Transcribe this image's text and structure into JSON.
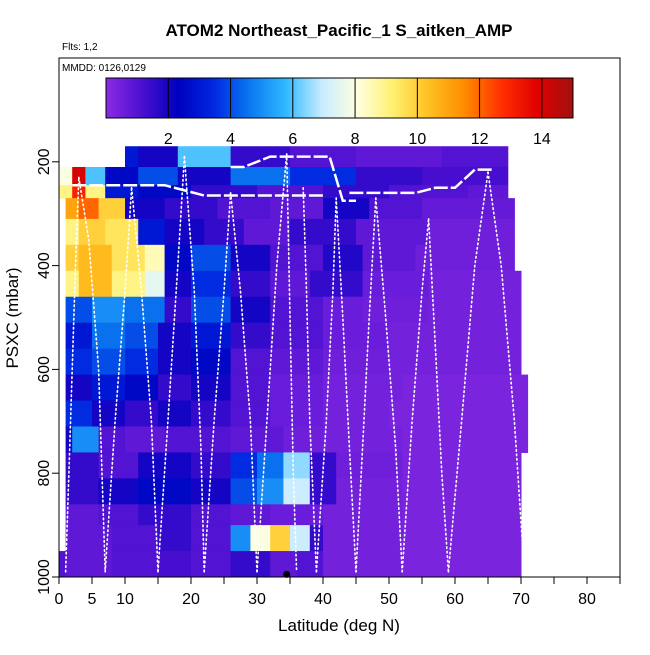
{
  "header": {
    "title": "ATOM2 Northeast_Pacific_1 S_aitken_AMP",
    "flights": "Flts: 1,2",
    "dates": "MMDD: 0126,0129"
  },
  "chart_data": {
    "type": "heatmap",
    "title": "ATOM2 Northeast_Pacific_1 S_aitken_AMP",
    "xlabel": "Latitude (deg N)",
    "ylabel": "PSXC (mbar)",
    "xlim": [
      0,
      85
    ],
    "ylim": [
      1000,
      0
    ],
    "x_ticks": [
      0,
      5,
      10,
      20,
      30,
      40,
      50,
      60,
      70,
      80
    ],
    "x_minor_ticks": [
      15,
      25,
      35,
      45,
      55,
      65,
      75,
      85
    ],
    "y_ticks": [
      200,
      400,
      600,
      800,
      1000
    ],
    "colorbar": {
      "min": 0,
      "max": 15,
      "ticks": [
        2,
        4,
        6,
        8,
        10,
        12,
        14
      ],
      "colors": [
        "#8a2be2",
        "#4b0fd0",
        "#0000c0",
        "#0028e0",
        "#0a78f0",
        "#30b8ff",
        "#c8ecff",
        "#ffffe0",
        "#fff070",
        "#ffc020",
        "#ff8a00",
        "#ff3000",
        "#e00000",
        "#a01010"
      ]
    },
    "grid": false,
    "bands": [
      {
        "p": [
          170,
          210
        ],
        "cells": [
          [
            10,
            12,
            3
          ],
          [
            12,
            18,
            2
          ],
          [
            18,
            26,
            6
          ],
          [
            26,
            35,
            1.5
          ],
          [
            35,
            45,
            1
          ],
          [
            45,
            58,
            0.8
          ],
          [
            58,
            68,
            1
          ]
        ]
      },
      {
        "p": [
          210,
          245
        ],
        "cells": [
          [
            0,
            2,
            8
          ],
          [
            2,
            4,
            14
          ],
          [
            4,
            7,
            6
          ],
          [
            7,
            12,
            2.5
          ],
          [
            12,
            18,
            4
          ],
          [
            18,
            26,
            2
          ],
          [
            26,
            35,
            4.5
          ],
          [
            35,
            45,
            3.5
          ],
          [
            45,
            55,
            1.5
          ],
          [
            55,
            68,
            1.2
          ]
        ]
      },
      {
        "p": [
          245,
          270
        ],
        "cells": [
          [
            0,
            2,
            9
          ],
          [
            2,
            4,
            13
          ],
          [
            4,
            7,
            9
          ],
          [
            7,
            12,
            3
          ],
          [
            12,
            20,
            2.5
          ],
          [
            20,
            30,
            1.5
          ],
          [
            30,
            40,
            1
          ],
          [
            40,
            50,
            1.5
          ],
          [
            50,
            62,
            1
          ],
          [
            62,
            68,
            0.8
          ]
        ]
      },
      {
        "p": [
          270,
          310
        ],
        "cells": [
          [
            1,
            3,
            11
          ],
          [
            3,
            6,
            12
          ],
          [
            6,
            10,
            10
          ],
          [
            10,
            16,
            2
          ],
          [
            16,
            24,
            1.5
          ],
          [
            24,
            32,
            1
          ],
          [
            32,
            40,
            0.8
          ],
          [
            40,
            47,
            2
          ],
          [
            47,
            55,
            1
          ],
          [
            55,
            69,
            0.7
          ]
        ]
      },
      {
        "p": [
          310,
          360
        ],
        "cells": [
          [
            1,
            3,
            9
          ],
          [
            3,
            7,
            10
          ],
          [
            7,
            12,
            9.5
          ],
          [
            12,
            16,
            3
          ],
          [
            16,
            22,
            2
          ],
          [
            22,
            28,
            1.5
          ],
          [
            28,
            35,
            0.8
          ],
          [
            35,
            45,
            1.5
          ],
          [
            45,
            56,
            0.8
          ],
          [
            56,
            69,
            0.5
          ]
        ]
      },
      {
        "p": [
          360,
          410
        ],
        "cells": [
          [
            1,
            3,
            10
          ],
          [
            3,
            8,
            10.5
          ],
          [
            8,
            13,
            9.5
          ],
          [
            13,
            16,
            8.5
          ],
          [
            16,
            20,
            2.5
          ],
          [
            20,
            26,
            4
          ],
          [
            26,
            32,
            2
          ],
          [
            32,
            40,
            1
          ],
          [
            40,
            46,
            1.8
          ],
          [
            46,
            54,
            0.8
          ],
          [
            54,
            69,
            0.5
          ]
        ]
      },
      {
        "p": [
          410,
          460
        ],
        "cells": [
          [
            1,
            3,
            9
          ],
          [
            3,
            8,
            10.5
          ],
          [
            8,
            13,
            9
          ],
          [
            13,
            16,
            7.5
          ],
          [
            16,
            20,
            2
          ],
          [
            20,
            26,
            3.5
          ],
          [
            26,
            32,
            1.5
          ],
          [
            32,
            38,
            0.8
          ],
          [
            38,
            46,
            1.5
          ],
          [
            46,
            56,
            0.6
          ],
          [
            56,
            70,
            0.4
          ]
        ]
      },
      {
        "p": [
          460,
          510
        ],
        "cells": [
          [
            1,
            5,
            4
          ],
          [
            5,
            10,
            5
          ],
          [
            10,
            16,
            4.5
          ],
          [
            16,
            20,
            1.5
          ],
          [
            20,
            26,
            4
          ],
          [
            26,
            32,
            2
          ],
          [
            32,
            40,
            1
          ],
          [
            40,
            46,
            0.6
          ],
          [
            46,
            56,
            0.5
          ],
          [
            56,
            70,
            0.4
          ]
        ]
      },
      {
        "p": [
          510,
          560
        ],
        "cells": [
          [
            1,
            5,
            3
          ],
          [
            5,
            10,
            4.5
          ],
          [
            10,
            15,
            4
          ],
          [
            15,
            20,
            2
          ],
          [
            20,
            26,
            3
          ],
          [
            26,
            32,
            1.5
          ],
          [
            32,
            40,
            1
          ],
          [
            40,
            50,
            0.6
          ],
          [
            50,
            70,
            0.4
          ]
        ]
      },
      {
        "p": [
          560,
          610
        ],
        "cells": [
          [
            1,
            5,
            3.5
          ],
          [
            5,
            10,
            4
          ],
          [
            10,
            15,
            3.5
          ],
          [
            15,
            20,
            2
          ],
          [
            20,
            26,
            2.5
          ],
          [
            26,
            32,
            1
          ],
          [
            32,
            40,
            0.8
          ],
          [
            40,
            50,
            0.5
          ],
          [
            50,
            70,
            0.4
          ]
        ]
      },
      {
        "p": [
          610,
          660
        ],
        "cells": [
          [
            1,
            5,
            2
          ],
          [
            5,
            10,
            3
          ],
          [
            10,
            15,
            2.5
          ],
          [
            15,
            20,
            1.5
          ],
          [
            20,
            26,
            2
          ],
          [
            26,
            32,
            1
          ],
          [
            32,
            40,
            0.6
          ],
          [
            40,
            52,
            0.4
          ],
          [
            52,
            71,
            0.3
          ]
        ]
      },
      {
        "p": [
          660,
          710
        ],
        "cells": [
          [
            1,
            5,
            3.5
          ],
          [
            5,
            10,
            2
          ],
          [
            10,
            15,
            1.5
          ],
          [
            15,
            20,
            2
          ],
          [
            20,
            26,
            1.5
          ],
          [
            26,
            32,
            1
          ],
          [
            32,
            40,
            0.6
          ],
          [
            40,
            50,
            0.4
          ],
          [
            50,
            71,
            0.3
          ]
        ]
      },
      {
        "p": [
          710,
          760
        ],
        "cells": [
          [
            1,
            2,
            2
          ],
          [
            2,
            6,
            5
          ],
          [
            6,
            10,
            1
          ],
          [
            10,
            16,
            0.8
          ],
          [
            16,
            26,
            1
          ],
          [
            26,
            34,
            0.8
          ],
          [
            34,
            40,
            0.5
          ],
          [
            40,
            52,
            0.4
          ],
          [
            52,
            71,
            0.3
          ]
        ]
      },
      {
        "p": [
          760,
          810
        ],
        "cells": [
          [
            1,
            6,
            1.5
          ],
          [
            6,
            12,
            1
          ],
          [
            12,
            20,
            2
          ],
          [
            20,
            26,
            1.5
          ],
          [
            26,
            30,
            3.5
          ],
          [
            30,
            34,
            4.5
          ],
          [
            34,
            38,
            6.5
          ],
          [
            38,
            42,
            1.5
          ],
          [
            42,
            52,
            0.5
          ],
          [
            52,
            70,
            0.3
          ]
        ]
      },
      {
        "p": [
          810,
          860
        ],
        "cells": [
          [
            1,
            6,
            1.5
          ],
          [
            6,
            12,
            2
          ],
          [
            12,
            20,
            2.5
          ],
          [
            20,
            26,
            2
          ],
          [
            26,
            30,
            4
          ],
          [
            30,
            34,
            5
          ],
          [
            34,
            38,
            7
          ],
          [
            38,
            42,
            1.5
          ],
          [
            42,
            52,
            0.4
          ],
          [
            52,
            70,
            0.3
          ]
        ]
      },
      {
        "p": [
          860,
          900
        ],
        "cells": [
          [
            1,
            6,
            0.8
          ],
          [
            6,
            12,
            1
          ],
          [
            12,
            20,
            1.5
          ],
          [
            20,
            26,
            1
          ],
          [
            26,
            32,
            0.8
          ],
          [
            32,
            40,
            0.6
          ],
          [
            40,
            52,
            0.4
          ],
          [
            52,
            70,
            0.3
          ]
        ]
      },
      {
        "p": [
          900,
          950
        ],
        "cells": [
          [
            1,
            8,
            0.8
          ],
          [
            8,
            15,
            1
          ],
          [
            15,
            20,
            1.5
          ],
          [
            20,
            26,
            1
          ],
          [
            26,
            29,
            5
          ],
          [
            29,
            32,
            8
          ],
          [
            32,
            35,
            10
          ],
          [
            35,
            38,
            7
          ],
          [
            38,
            40,
            1.5
          ],
          [
            40,
            52,
            0.4
          ],
          [
            52,
            70,
            0.3
          ]
        ]
      },
      {
        "p": [
          950,
          1000
        ],
        "cells": [
          [
            0,
            1,
            1
          ],
          [
            1,
            8,
            0.8
          ],
          [
            8,
            15,
            1
          ],
          [
            15,
            20,
            1.2
          ],
          [
            20,
            26,
            1
          ],
          [
            26,
            32,
            1.5
          ],
          [
            32,
            36,
            0.8
          ],
          [
            36,
            40,
            1
          ],
          [
            40,
            52,
            0.4
          ],
          [
            52,
            70,
            0.3
          ]
        ]
      }
    ],
    "profiles": [
      {
        "lat": [
          1,
          1.5,
          2,
          2.5,
          3
        ],
        "p": [
          990,
          800,
          600,
          400,
          230
        ]
      },
      {
        "lat": [
          3,
          4.5,
          6,
          7
        ],
        "p": [
          230,
          350,
          600,
          990
        ]
      },
      {
        "lat": [
          7,
          8.5,
          10,
          11
        ],
        "p": [
          990,
          700,
          450,
          250
        ]
      },
      {
        "lat": [
          11,
          12.5,
          14,
          15
        ],
        "p": [
          250,
          450,
          700,
          990
        ]
      },
      {
        "lat": [
          15,
          16.5,
          18,
          19
        ],
        "p": [
          990,
          700,
          400,
          190
        ]
      },
      {
        "lat": [
          19,
          20.5,
          21.5,
          22
        ],
        "p": [
          190,
          450,
          750,
          990
        ]
      },
      {
        "lat": [
          22,
          23.5,
          25,
          26
        ],
        "p": [
          990,
          700,
          450,
          260
        ]
      },
      {
        "lat": [
          26,
          27.5,
          29,
          30
        ],
        "p": [
          260,
          450,
          700,
          990
        ]
      },
      {
        "lat": [
          30,
          31.5,
          33,
          34.5
        ],
        "p": [
          990,
          700,
          400,
          185
        ]
      },
      {
        "lat": [
          34.5,
          35,
          35.5,
          36
        ],
        "p": [
          185,
          500,
          800,
          990
        ]
      },
      {
        "lat": [
          37,
          37.5,
          38,
          39
        ],
        "p": [
          250,
          450,
          700,
          990
        ]
      },
      {
        "lat": [
          39,
          40.5,
          41.5,
          42
        ],
        "p": [
          990,
          700,
          450,
          270
        ]
      },
      {
        "lat": [
          42,
          43,
          44,
          45
        ],
        "p": [
          270,
          500,
          750,
          990
        ]
      },
      {
        "lat": [
          45,
          46,
          47,
          48
        ],
        "p": [
          990,
          750,
          500,
          270
        ]
      },
      {
        "lat": [
          48,
          49.5,
          51,
          52
        ],
        "p": [
          270,
          500,
          750,
          990
        ]
      },
      {
        "lat": [
          52,
          53.5,
          55,
          56
        ],
        "p": [
          990,
          700,
          450,
          310
        ]
      },
      {
        "lat": [
          56,
          57,
          58,
          59
        ],
        "p": [
          310,
          550,
          800,
          990
        ]
      },
      {
        "lat": [
          59,
          61,
          63,
          65
        ],
        "p": [
          990,
          700,
          400,
          220
        ]
      },
      {
        "lat": [
          65,
          67,
          69,
          70.5
        ],
        "p": [
          220,
          400,
          700,
          990
        ]
      }
    ],
    "flight_tracks": [
      {
        "lat": [
          2,
          10,
          16,
          22,
          26,
          28,
          32,
          35,
          40
        ],
        "p": [
          245,
          245,
          245,
          265,
          265,
          265,
          265,
          265,
          265
        ]
      },
      {
        "lat": [
          26,
          28,
          32,
          34,
          38,
          41,
          43,
          45
        ],
        "p": [
          210,
          210,
          190,
          190,
          190,
          190,
          275,
          275
        ]
      },
      {
        "lat": [
          44,
          50,
          54,
          57,
          60,
          63,
          66
        ],
        "p": [
          260,
          260,
          260,
          250,
          250,
          215,
          215
        ]
      }
    ],
    "marker": {
      "lat": 34.5,
      "p": 995
    }
  }
}
